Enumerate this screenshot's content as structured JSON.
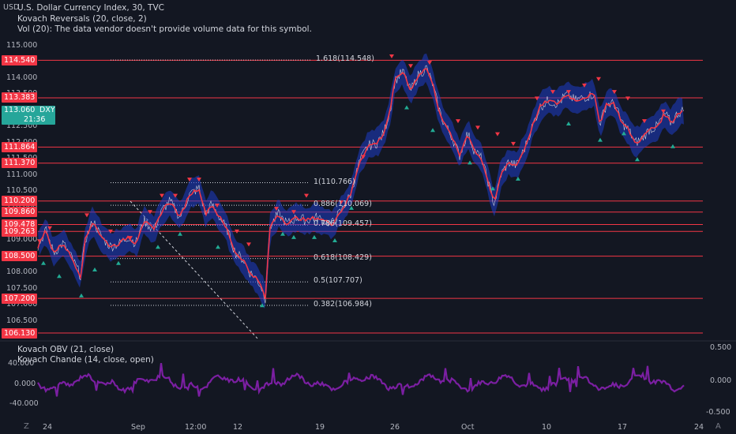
{
  "legend": {
    "title": "U.S. Dollar Currency Index, 30, TVC",
    "indicator1": "Kovach Reversals (20, close, 2)",
    "volume": "Vol (20): The data vendor doesn't provide volume data for this symbol."
  },
  "currency": "USD",
  "y_axis": {
    "ticks": [
      "115.000",
      "114.500",
      "114.000",
      "113.500",
      "113.000",
      "112.500",
      "112.000",
      "111.500",
      "111.000",
      "110.500",
      "110.000",
      "109.500",
      "109.000",
      "108.500",
      "108.000",
      "107.500",
      "107.000",
      "106.500"
    ]
  },
  "price_levels": [
    "114.540",
    "113.383",
    "111.864",
    "111.370",
    "110.200",
    "109.860",
    "109.478",
    "109.263",
    "108.500",
    "107.200",
    "106.130"
  ],
  "current_price": {
    "symbol": "DXY",
    "value": "113.060",
    "countdown": "21:36"
  },
  "fib_levels": [
    {
      "label": "1.618(114.548)",
      "price": 114.548
    },
    {
      "label": "1(110.766)",
      "price": 110.766
    },
    {
      "label": "0.886(110.069)",
      "price": 110.069
    },
    {
      "label": "0.786(109.457)",
      "price": 109.457
    },
    {
      "label": "0.618(108.429)",
      "price": 108.429
    },
    {
      "label": "0.5(107.707)",
      "price": 107.707
    },
    {
      "label": "0.382(106.984)",
      "price": 106.984
    }
  ],
  "sub_pane": {
    "indicator1": "Kovach OBV (21, close)",
    "indicator2": "Kovach Chande (14, close, open)",
    "left_ticks": [
      "40.000",
      "0.000",
      "-40.000"
    ],
    "right_ticks": [
      "0.500",
      "0.000",
      "-0.500"
    ]
  },
  "x_axis": {
    "labels": [
      "24",
      "Sep",
      "12:00",
      "12",
      "19",
      "26",
      "Oct",
      "10",
      "17",
      "24"
    ]
  },
  "corner_left": "Z",
  "corner_right": "A",
  "colors": {
    "background": "#131722",
    "level_line": "#f23645",
    "candle_line": "#e8e8e8",
    "channel": "#1e3cc8",
    "ma_red": "#f23645",
    "up_marker": "#22ab94",
    "down_marker": "#f23645",
    "osc": "#7b1fa2",
    "dxy_tag": "#26a69a"
  }
}
